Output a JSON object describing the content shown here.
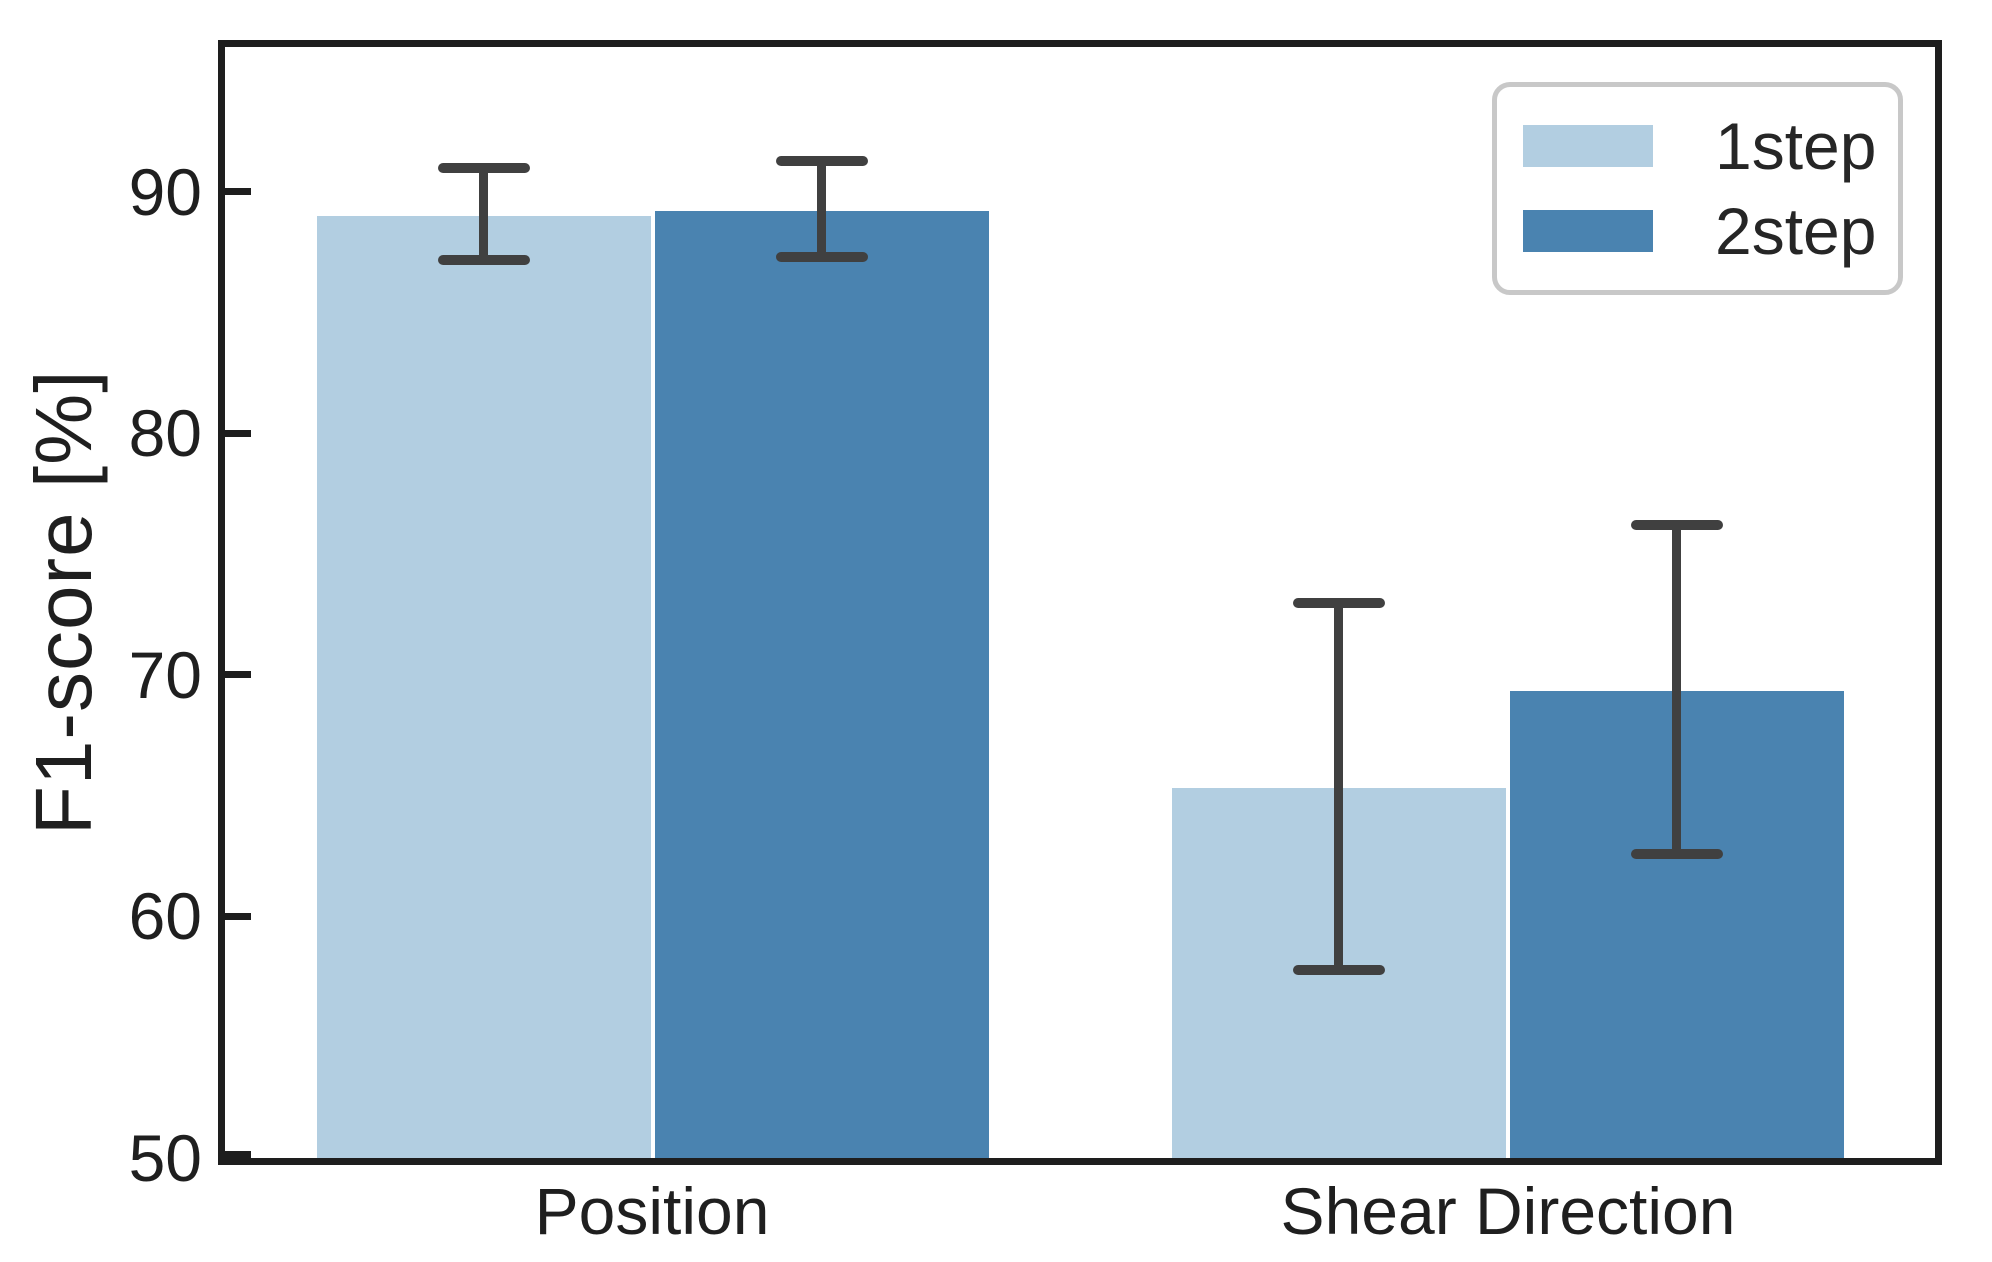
{
  "figure": {
    "ylabel": "F1-score [%]"
  },
  "chart_data": {
    "type": "bar",
    "title": "",
    "xlabel": "",
    "ylabel": "F1-score [%]",
    "categories": [
      "Position",
      "Shear Direction"
    ],
    "series": [
      {
        "name": "1step",
        "color": "#b2cee1",
        "values": [
          89.1,
          65.4
        ],
        "errors": [
          1.9,
          7.6
        ]
      },
      {
        "name": "2step",
        "color": "#4a83b0",
        "values": [
          89.3,
          69.4
        ],
        "errors": [
          2.0,
          6.8
        ]
      }
    ],
    "ylim": [
      50,
      96
    ],
    "yticks": [
      50,
      60,
      70,
      80,
      90
    ],
    "grid": false,
    "legend_position": "upper right",
    "error_bar_color": "#404040",
    "axis_color": "#1e1e1e",
    "legend_border_color": "#c8c8c8"
  }
}
